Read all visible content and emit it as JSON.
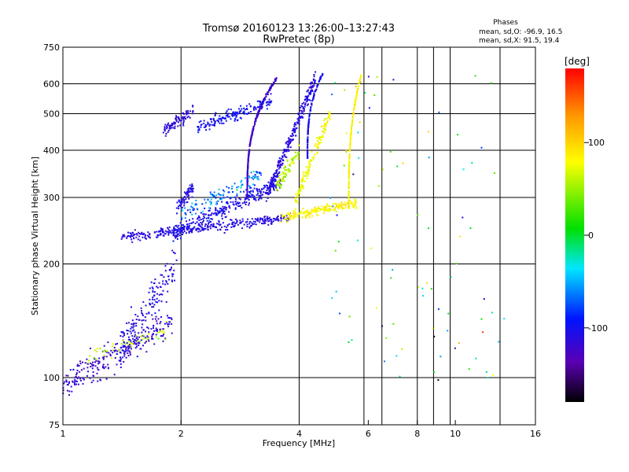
{
  "chart_data": {
    "type": "scatter",
    "title": "Tromsø 20160123 13:26:00–13:27:43",
    "subtitle": "RwPretec (8p)",
    "xlabel": "Frequency [MHz]",
    "ylabel": "Stationary phase Virtual Height [km]",
    "x_scale": "log",
    "y_scale": "log",
    "xlim": [
      1,
      16
    ],
    "ylim": [
      75,
      750
    ],
    "x_ticks": [
      1,
      2,
      4,
      6,
      8,
      10,
      16
    ],
    "x_tick_labels": [
      "1",
      "2",
      "4",
      "6",
      "8",
      "10",
      "16"
    ],
    "y_ticks": [
      75,
      100,
      200,
      300,
      400,
      500,
      600,
      750
    ],
    "y_tick_labels": [
      "75",
      "100",
      "200",
      "300",
      "400",
      "500",
      "600",
      "750"
    ],
    "x_grid": [
      2,
      4,
      5.85,
      6.5,
      8,
      8.8,
      9.7,
      13
    ],
    "y_grid": [
      100,
      200,
      300,
      400,
      500,
      600
    ],
    "stats": {
      "heading": "Phases",
      "line_o": "mean, sd,O: -96.9, 16.5",
      "line_x": "mean, sd,X:  91.5, 19.4"
    },
    "colorbar": {
      "label": "[deg]",
      "range": [
        -180,
        180
      ],
      "ticks": [
        100,
        0,
        -100
      ],
      "tick_labels": [
        "100",
        "0",
        "-100"
      ],
      "colormap": "rainbow"
    },
    "point_clusters": [
      {
        "shape": "band",
        "x0": 1.0,
        "x1": 1.9,
        "h0": 95,
        "h1": 140,
        "n": 260,
        "spread": 0.09,
        "phase": -120,
        "phase_sd": 25
      },
      {
        "shape": "band",
        "x0": 1.4,
        "x1": 1.95,
        "h0": 120,
        "h1": 200,
        "n": 150,
        "spread": 0.12,
        "phase": -110,
        "phase_sd": 15
      },
      {
        "shape": "band",
        "x0": 1.15,
        "x1": 1.85,
        "h0": 112,
        "h1": 135,
        "n": 50,
        "spread": 0.05,
        "phase": 60,
        "phase_sd": 30
      },
      {
        "shape": "band",
        "x0": 1.4,
        "x1": 3.8,
        "h0": 235,
        "h1": 265,
        "n": 320,
        "spread": 0.03,
        "phase": -110,
        "phase_sd": 15
      },
      {
        "shape": "band",
        "x0": 1.9,
        "x1": 3.6,
        "h0": 240,
        "h1": 330,
        "n": 280,
        "spread": 0.05,
        "phase": -105,
        "phase_sd": 20
      },
      {
        "shape": "band",
        "x0": 2.0,
        "x1": 3.2,
        "h0": 270,
        "h1": 345,
        "n": 120,
        "spread": 0.05,
        "phase": -60,
        "phase_sd": 40
      },
      {
        "shape": "vert",
        "x0": 2.95,
        "x1": 3.5,
        "h0": 300,
        "h1": 620,
        "n": 320,
        "spread": 0.02,
        "phase": -125,
        "phase_sd": 15
      },
      {
        "shape": "band",
        "x0": 1.8,
        "x1": 2.15,
        "h0": 450,
        "h1": 510,
        "n": 90,
        "spread": 0.04,
        "phase": -115,
        "phase_sd": 15
      },
      {
        "shape": "band",
        "x0": 2.2,
        "x1": 3.4,
        "h0": 460,
        "h1": 540,
        "n": 160,
        "spread": 0.04,
        "phase": -100,
        "phase_sd": 20
      },
      {
        "shape": "band",
        "x0": 1.95,
        "x1": 2.15,
        "h0": 280,
        "h1": 320,
        "n": 70,
        "spread": 0.04,
        "phase": -110,
        "phase_sd": 15
      },
      {
        "shape": "band",
        "x0": 3.3,
        "x1": 4.4,
        "h0": 300,
        "h1": 620,
        "n": 260,
        "spread": 0.05,
        "phase": -110,
        "phase_sd": 20
      },
      {
        "shape": "vert",
        "x0": 4.2,
        "x1": 4.6,
        "h0": 380,
        "h1": 640,
        "n": 140,
        "spread": 0.02,
        "phase": -105,
        "phase_sd": 20
      },
      {
        "shape": "band",
        "x0": 3.6,
        "x1": 5.6,
        "h0": 265,
        "h1": 290,
        "n": 200,
        "spread": 0.03,
        "phase": 85,
        "phase_sd": 18
      },
      {
        "shape": "vert",
        "x0": 5.35,
        "x1": 5.75,
        "h0": 280,
        "h1": 630,
        "n": 220,
        "spread": 0.02,
        "phase": 85,
        "phase_sd": 18
      },
      {
        "shape": "band",
        "x0": 3.9,
        "x1": 4.8,
        "h0": 290,
        "h1": 500,
        "n": 150,
        "spread": 0.05,
        "phase": 80,
        "phase_sd": 20
      },
      {
        "shape": "band",
        "x0": 3.5,
        "x1": 4.0,
        "h0": 320,
        "h1": 400,
        "n": 80,
        "spread": 0.05,
        "phase": 60,
        "phase_sd": 30
      },
      {
        "shape": "sparse",
        "x0": 4.8,
        "x1": 13.5,
        "h0": 95,
        "h1": 640,
        "n": 90,
        "spread": 0,
        "phase": 0,
        "phase_sd": 150
      }
    ]
  }
}
